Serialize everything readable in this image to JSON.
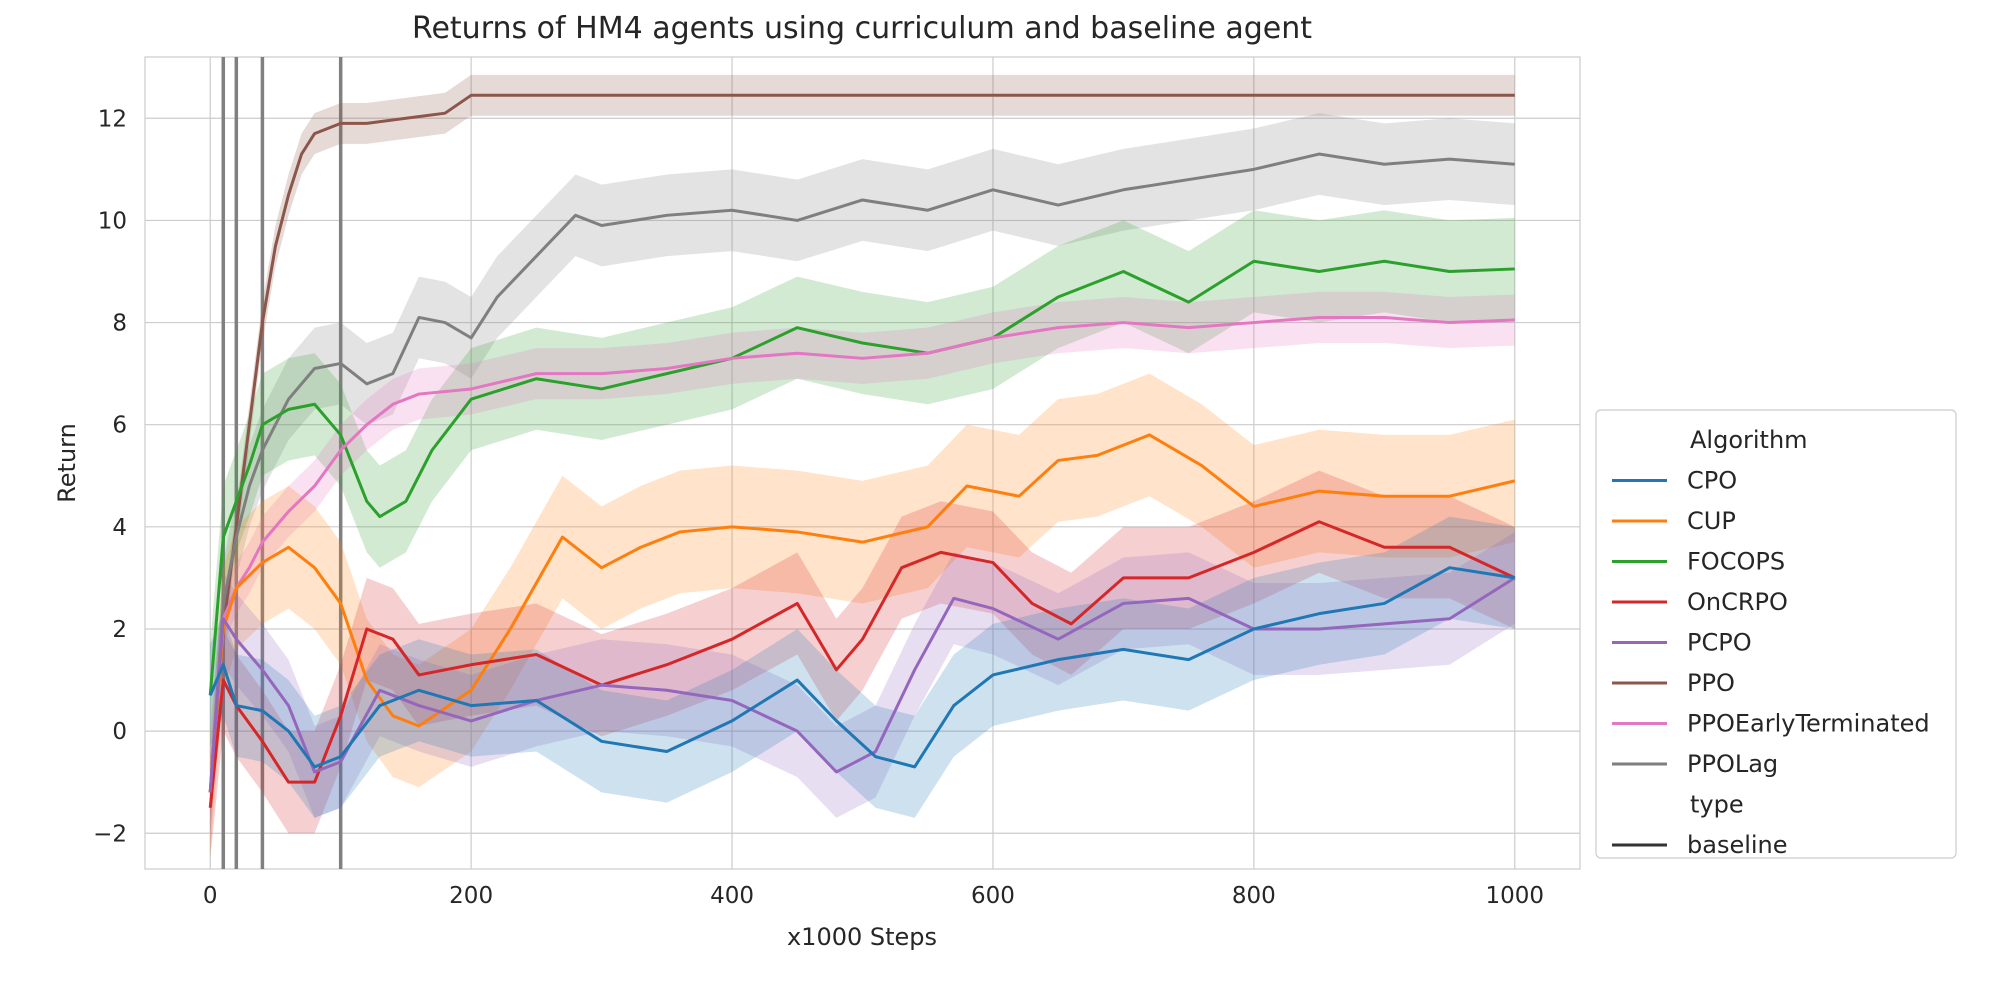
{
  "chart_data": {
    "type": "line",
    "title": "Returns of HM4 agents using curriculum and baseline agent",
    "xlabel": "x1000 Steps",
    "ylabel": "Return",
    "xlim": [
      -50,
      1050
    ],
    "ylim": [
      -2.7,
      13.2
    ],
    "xticks": [
      0,
      200,
      400,
      600,
      800,
      1000
    ],
    "yticks": [
      -2,
      0,
      2,
      4,
      6,
      8,
      10,
      12
    ],
    "grid": true,
    "vertical_lines": [
      10,
      20,
      40,
      100
    ],
    "legend": {
      "placement": "outside-right-bottom",
      "entries": [
        {
          "label": "Algorithm",
          "kind": "header"
        },
        {
          "label": "CPO",
          "color": "#1f77b4"
        },
        {
          "label": "CUP",
          "color": "#ff7f0e"
        },
        {
          "label": "FOCOPS",
          "color": "#2ca02c"
        },
        {
          "label": "OnCRPO",
          "color": "#d62728"
        },
        {
          "label": "PCPO",
          "color": "#9467bd"
        },
        {
          "label": "PPO",
          "color": "#8c564b"
        },
        {
          "label": "PPOEarlyTerminated",
          "color": "#e377c2"
        },
        {
          "label": "PPOLag",
          "color": "#7f7f7f"
        },
        {
          "label": "type",
          "kind": "header"
        },
        {
          "label": "baseline",
          "color": "#333333"
        }
      ]
    },
    "series": [
      {
        "name": "PPO",
        "color": "#8c564b",
        "points": [
          [
            0,
            -1.2
          ],
          [
            10,
            2
          ],
          [
            20,
            4
          ],
          [
            30,
            6
          ],
          [
            40,
            8
          ],
          [
            50,
            9.5
          ],
          [
            60,
            10.5
          ],
          [
            70,
            11.3
          ],
          [
            80,
            11.7
          ],
          [
            90,
            11.8
          ],
          [
            100,
            11.9
          ],
          [
            120,
            11.9
          ],
          [
            150,
            12.0
          ],
          [
            180,
            12.1
          ],
          [
            200,
            12.45
          ],
          [
            250,
            12.45
          ],
          [
            300,
            12.45
          ],
          [
            400,
            12.45
          ],
          [
            500,
            12.45
          ],
          [
            600,
            12.45
          ],
          [
            700,
            12.45
          ],
          [
            800,
            12.45
          ],
          [
            900,
            12.45
          ],
          [
            1000,
            12.45
          ]
        ],
        "band": 0.4
      },
      {
        "name": "PPOLag",
        "color": "#7f7f7f",
        "points": [
          [
            0,
            -1.2
          ],
          [
            10,
            2.5
          ],
          [
            20,
            3.8
          ],
          [
            30,
            4.8
          ],
          [
            40,
            5.5
          ],
          [
            60,
            6.5
          ],
          [
            80,
            7.1
          ],
          [
            100,
            7.2
          ],
          [
            120,
            6.8
          ],
          [
            140,
            7.0
          ],
          [
            160,
            8.1
          ],
          [
            180,
            8.0
          ],
          [
            200,
            7.7
          ],
          [
            220,
            8.5
          ],
          [
            250,
            9.3
          ],
          [
            280,
            10.1
          ],
          [
            300,
            9.9
          ],
          [
            350,
            10.1
          ],
          [
            400,
            10.2
          ],
          [
            450,
            10.0
          ],
          [
            500,
            10.4
          ],
          [
            550,
            10.2
          ],
          [
            600,
            10.6
          ],
          [
            650,
            10.3
          ],
          [
            700,
            10.6
          ],
          [
            750,
            10.8
          ],
          [
            800,
            11.0
          ],
          [
            850,
            11.3
          ],
          [
            900,
            11.1
          ],
          [
            950,
            11.2
          ],
          [
            1000,
            11.1
          ]
        ],
        "band": 0.8
      },
      {
        "name": "FOCOPS",
        "color": "#2ca02c",
        "points": [
          [
            0,
            0.7
          ],
          [
            10,
            3.8
          ],
          [
            20,
            4.5
          ],
          [
            30,
            5.2
          ],
          [
            40,
            6.0
          ],
          [
            60,
            6.3
          ],
          [
            80,
            6.4
          ],
          [
            100,
            5.8
          ],
          [
            120,
            4.5
          ],
          [
            130,
            4.2
          ],
          [
            150,
            4.5
          ],
          [
            170,
            5.5
          ],
          [
            200,
            6.5
          ],
          [
            250,
            6.9
          ],
          [
            300,
            6.7
          ],
          [
            350,
            7.0
          ],
          [
            400,
            7.3
          ],
          [
            450,
            7.9
          ],
          [
            500,
            7.6
          ],
          [
            550,
            7.4
          ],
          [
            600,
            7.7
          ],
          [
            650,
            8.5
          ],
          [
            700,
            9.0
          ],
          [
            750,
            8.4
          ],
          [
            800,
            9.2
          ],
          [
            850,
            9.0
          ],
          [
            900,
            9.2
          ],
          [
            950,
            9.0
          ],
          [
            1000,
            9.05
          ]
        ],
        "band": 1.0
      },
      {
        "name": "PPOEarlyTerminated",
        "color": "#e377c2",
        "points": [
          [
            0,
            -1.2
          ],
          [
            10,
            2.2
          ],
          [
            20,
            2.8
          ],
          [
            30,
            3.2
          ],
          [
            40,
            3.7
          ],
          [
            60,
            4.3
          ],
          [
            80,
            4.8
          ],
          [
            100,
            5.5
          ],
          [
            120,
            6.0
          ],
          [
            140,
            6.4
          ],
          [
            160,
            6.6
          ],
          [
            200,
            6.7
          ],
          [
            250,
            7.0
          ],
          [
            300,
            7.0
          ],
          [
            350,
            7.1
          ],
          [
            400,
            7.3
          ],
          [
            450,
            7.4
          ],
          [
            500,
            7.3
          ],
          [
            550,
            7.4
          ],
          [
            600,
            7.7
          ],
          [
            650,
            7.9
          ],
          [
            700,
            8.0
          ],
          [
            750,
            7.9
          ],
          [
            800,
            8.0
          ],
          [
            850,
            8.1
          ],
          [
            900,
            8.1
          ],
          [
            950,
            8.0
          ],
          [
            1000,
            8.05
          ]
        ],
        "band": 0.5
      },
      {
        "name": "CUP",
        "color": "#ff7f0e",
        "points": [
          [
            0,
            -1.2
          ],
          [
            10,
            2.0
          ],
          [
            20,
            2.8
          ],
          [
            40,
            3.3
          ],
          [
            60,
            3.6
          ],
          [
            80,
            3.2
          ],
          [
            100,
            2.5
          ],
          [
            120,
            1.0
          ],
          [
            140,
            0.3
          ],
          [
            160,
            0.1
          ],
          [
            200,
            0.8
          ],
          [
            230,
            2.0
          ],
          [
            270,
            3.8
          ],
          [
            300,
            3.2
          ],
          [
            330,
            3.6
          ],
          [
            360,
            3.9
          ],
          [
            400,
            4.0
          ],
          [
            450,
            3.9
          ],
          [
            500,
            3.7
          ],
          [
            550,
            4.0
          ],
          [
            580,
            4.8
          ],
          [
            620,
            4.6
          ],
          [
            650,
            5.3
          ],
          [
            680,
            5.4
          ],
          [
            720,
            5.8
          ],
          [
            760,
            5.2
          ],
          [
            800,
            4.4
          ],
          [
            850,
            4.7
          ],
          [
            900,
            4.6
          ],
          [
            950,
            4.6
          ],
          [
            1000,
            4.9
          ]
        ],
        "band": 1.2
      },
      {
        "name": "OnCRPO",
        "color": "#d62728",
        "points": [
          [
            0,
            -1.5
          ],
          [
            10,
            1.0
          ],
          [
            20,
            0.5
          ],
          [
            40,
            -0.2
          ],
          [
            60,
            -1.0
          ],
          [
            80,
            -1.0
          ],
          [
            100,
            0.3
          ],
          [
            120,
            2.0
          ],
          [
            140,
            1.8
          ],
          [
            160,
            1.1
          ],
          [
            200,
            1.3
          ],
          [
            250,
            1.5
          ],
          [
            300,
            0.9
          ],
          [
            350,
            1.3
          ],
          [
            400,
            1.8
          ],
          [
            450,
            2.5
          ],
          [
            480,
            1.2
          ],
          [
            500,
            1.8
          ],
          [
            530,
            3.2
          ],
          [
            560,
            3.5
          ],
          [
            600,
            3.3
          ],
          [
            630,
            2.5
          ],
          [
            660,
            2.1
          ],
          [
            700,
            3.0
          ],
          [
            750,
            3.0
          ],
          [
            800,
            3.5
          ],
          [
            850,
            4.1
          ],
          [
            900,
            3.6
          ],
          [
            950,
            3.6
          ],
          [
            1000,
            3.0
          ]
        ],
        "band": 1.0
      },
      {
        "name": "PCPO",
        "color": "#9467bd",
        "points": [
          [
            0,
            -1.2
          ],
          [
            10,
            2.2
          ],
          [
            20,
            1.8
          ],
          [
            40,
            1.2
          ],
          [
            60,
            0.5
          ],
          [
            80,
            -0.8
          ],
          [
            100,
            -0.6
          ],
          [
            130,
            0.8
          ],
          [
            160,
            0.5
          ],
          [
            200,
            0.2
          ],
          [
            250,
            0.6
          ],
          [
            300,
            0.9
          ],
          [
            350,
            0.8
          ],
          [
            400,
            0.6
          ],
          [
            450,
            0.0
          ],
          [
            480,
            -0.8
          ],
          [
            510,
            -0.4
          ],
          [
            540,
            1.2
          ],
          [
            570,
            2.6
          ],
          [
            600,
            2.4
          ],
          [
            650,
            1.8
          ],
          [
            700,
            2.5
          ],
          [
            750,
            2.6
          ],
          [
            800,
            2.0
          ],
          [
            850,
            2.0
          ],
          [
            900,
            2.1
          ],
          [
            950,
            2.2
          ],
          [
            1000,
            3.0
          ]
        ],
        "band": 0.9
      },
      {
        "name": "CPO",
        "color": "#1f77b4",
        "points": [
          [
            0,
            0.7
          ],
          [
            10,
            1.3
          ],
          [
            20,
            0.5
          ],
          [
            40,
            0.4
          ],
          [
            60,
            0.0
          ],
          [
            80,
            -0.7
          ],
          [
            100,
            -0.5
          ],
          [
            130,
            0.5
          ],
          [
            160,
            0.8
          ],
          [
            200,
            0.5
          ],
          [
            250,
            0.6
          ],
          [
            300,
            -0.2
          ],
          [
            350,
            -0.4
          ],
          [
            400,
            0.2
          ],
          [
            450,
            1.0
          ],
          [
            480,
            0.2
          ],
          [
            510,
            -0.5
          ],
          [
            540,
            -0.7
          ],
          [
            570,
            0.5
          ],
          [
            600,
            1.1
          ],
          [
            650,
            1.4
          ],
          [
            700,
            1.6
          ],
          [
            750,
            1.4
          ],
          [
            800,
            2.0
          ],
          [
            850,
            2.3
          ],
          [
            900,
            2.5
          ],
          [
            950,
            3.2
          ],
          [
            1000,
            3.0
          ]
        ],
        "band": 1.0
      }
    ]
  }
}
